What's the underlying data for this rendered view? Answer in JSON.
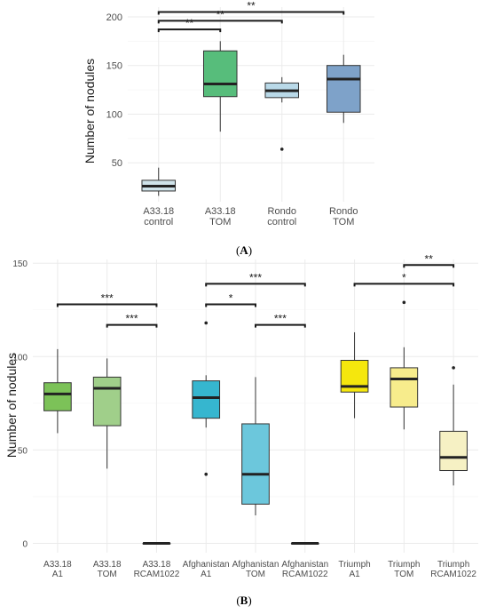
{
  "chart_data": [
    {
      "panel_label": "A",
      "type": "box",
      "ylabel": "Number of nodules",
      "ylim": [
        10,
        210
      ],
      "yticks": [
        50,
        100,
        150,
        200
      ],
      "grid": true,
      "groups": [
        {
          "label_lines": [
            "A33.18",
            "control"
          ],
          "color": "#cfe3ea",
          "min": 16,
          "q1": 21,
          "median": 26,
          "q3": 32,
          "max": 45,
          "outliers": []
        },
        {
          "label_lines": [
            "A33.18",
            "TOM"
          ],
          "color": "#57bd7b",
          "min": 82,
          "q1": 118,
          "median": 131,
          "q3": 165,
          "max": 175,
          "outliers": []
        },
        {
          "label_lines": [
            "Rondo",
            "control"
          ],
          "color": "#b9d9e8",
          "min": 112,
          "q1": 117,
          "median": 124,
          "q3": 132,
          "max": 138,
          "outliers": [
            64
          ]
        },
        {
          "label_lines": [
            "Rondo",
            "TOM"
          ],
          "color": "#7ea2c9",
          "min": 91,
          "q1": 102,
          "median": 136,
          "q3": 150,
          "max": 161,
          "outliers": []
        }
      ],
      "significance": [
        {
          "from": 0,
          "to": 1,
          "y": 187,
          "label": "**"
        },
        {
          "from": 0,
          "to": 2,
          "y": 196,
          "label": "**"
        },
        {
          "from": 0,
          "to": 3,
          "y": 205,
          "label": "**"
        }
      ]
    },
    {
      "panel_label": "B",
      "type": "box",
      "ylabel": "Number of nodules",
      "ylim": [
        -5,
        152
      ],
      "yticks": [
        0,
        50,
        100,
        150
      ],
      "grid": true,
      "groups": [
        {
          "label_lines": [
            "A33.18",
            "A1"
          ],
          "color": "#7cc258",
          "min": 59,
          "q1": 71,
          "median": 80,
          "q3": 86,
          "max": 104,
          "outliers": []
        },
        {
          "label_lines": [
            "A33.18",
            "TOM"
          ],
          "color": "#a0cf8a",
          "min": 40,
          "q1": 63,
          "median": 83,
          "q3": 89,
          "max": 99,
          "outliers": []
        },
        {
          "label_lines": [
            "A33.18",
            "RCAM1022"
          ],
          "color": "#ffffff",
          "min": 0,
          "q1": 0,
          "median": 0,
          "q3": 0,
          "max": 0,
          "outliers": []
        },
        {
          "label_lines": [
            "Afghanistan",
            "A1"
          ],
          "color": "#36b6cf",
          "min": 62,
          "q1": 67,
          "median": 78,
          "q3": 87,
          "max": 90,
          "outliers": [
            118,
            37
          ]
        },
        {
          "label_lines": [
            "Afghanistan",
            "TOM"
          ],
          "color": "#6cc7dc",
          "min": 15,
          "q1": 21,
          "median": 37,
          "q3": 64,
          "max": 89,
          "outliers": []
        },
        {
          "label_lines": [
            "Afghanistan",
            "RCAM1022"
          ],
          "color": "#ffffff",
          "min": 0,
          "q1": 0,
          "median": 0,
          "q3": 0,
          "max": 0,
          "outliers": []
        },
        {
          "label_lines": [
            "Triumph",
            "A1"
          ],
          "color": "#f5e70d",
          "min": 67,
          "q1": 81,
          "median": 84,
          "q3": 98,
          "max": 113,
          "outliers": []
        },
        {
          "label_lines": [
            "Triumph",
            "TOM"
          ],
          "color": "#f7ec8c",
          "min": 61,
          "q1": 73,
          "median": 88,
          "q3": 94,
          "max": 105,
          "outliers": [
            129
          ]
        },
        {
          "label_lines": [
            "Triumph",
            "RCAM1022"
          ],
          "color": "#f6f1c4",
          "min": 31,
          "q1": 39,
          "median": 46,
          "q3": 60,
          "max": 85,
          "outliers": [
            94
          ]
        }
      ],
      "significance": [
        {
          "from": 0,
          "to": 2,
          "y": 128,
          "label": "***"
        },
        {
          "from": 1,
          "to": 2,
          "y": 117,
          "label": "***"
        },
        {
          "from": 3,
          "to": 5,
          "y": 139,
          "label": "***"
        },
        {
          "from": 3,
          "to": 4,
          "y": 128,
          "label": "*"
        },
        {
          "from": 4,
          "to": 5,
          "y": 117,
          "label": "***"
        },
        {
          "from": 6,
          "to": 8,
          "y": 139,
          "label": "*"
        },
        {
          "from": 7,
          "to": 8,
          "y": 149,
          "label": "**"
        }
      ]
    }
  ]
}
